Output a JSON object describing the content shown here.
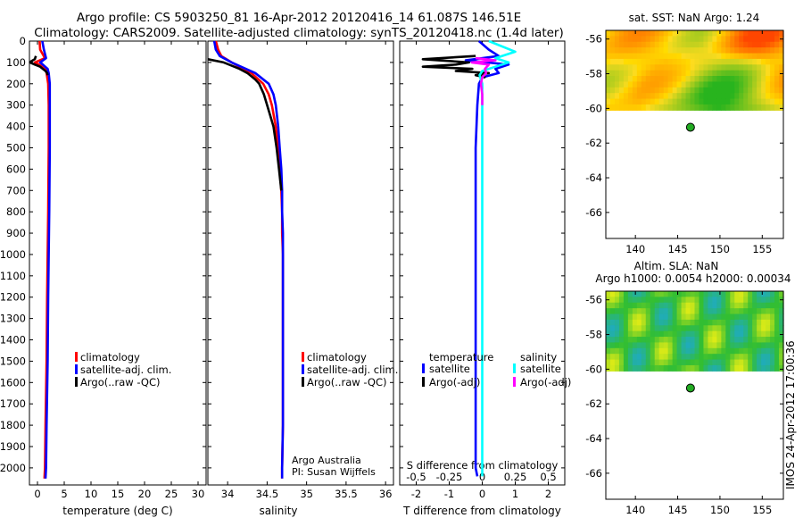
{
  "header": {
    "line1": "Argo profile: CS 5903250_81 16-Apr-2012 20120416_14 61.087S 146.51E",
    "line2": "Climatology: CARS2009. Satellite-adjusted climatology: synTS_20120418.nc (1.4d later)"
  },
  "colors": {
    "climatology": "#ff0000",
    "satellite": "#0000ff",
    "argo": "#000000",
    "salinity_satellite": "#00ffff",
    "salinity_argo": "#ff00ff",
    "argo_marker": "#22aa22"
  },
  "chart_data": [
    {
      "id": "temperature",
      "type": "line",
      "xlabel": "temperature (deg C)",
      "xlim": [
        -1.5,
        31.5
      ],
      "xticks": [
        "0",
        "5",
        "10",
        "15",
        "20",
        "25",
        "30"
      ],
      "ylim": [
        2080,
        0
      ],
      "yticks": [
        "0",
        "100",
        "200",
        "300",
        "400",
        "500",
        "600",
        "700",
        "800",
        "900",
        "1000",
        "1100",
        "1200",
        "1300",
        "1400",
        "1500",
        "1600",
        "1700",
        "1800",
        "1900",
        "2000"
      ],
      "legend": [
        "climatology",
        "satellite-adj. clim.",
        "Argo(..raw -QC)"
      ],
      "legend_placement": "lower-middle",
      "series": [
        {
          "name": "climatology",
          "y": [
            0,
            40,
            80,
            100,
            110,
            130,
            150,
            200,
            300,
            500,
            800,
            1000,
            1200,
            1500,
            1800,
            2000,
            2050
          ],
          "x": [
            0.4,
            0.5,
            1.4,
            -0.5,
            0.3,
            1.5,
            1.7,
            2.0,
            2.1,
            2.1,
            2.0,
            1.9,
            1.8,
            1.7,
            1.5,
            1.4,
            1.3
          ]
        },
        {
          "name": "satellite-adj. clim.",
          "y": [
            0,
            40,
            80,
            100,
            110,
            130,
            150,
            200,
            300,
            500,
            800,
            1000,
            1200,
            1500,
            1800,
            2000,
            2050
          ],
          "x": [
            0.9,
            1.2,
            1.6,
            0.5,
            1.0,
            1.9,
            2.1,
            2.3,
            2.3,
            2.3,
            2.2,
            2.1,
            2.0,
            1.9,
            1.7,
            1.6,
            1.5
          ]
        },
        {
          "name": "Argo(..raw -QC)",
          "y": [
            70,
            85,
            95,
            100,
            110,
            120,
            130,
            140,
            150,
            160
          ],
          "x": [
            -0.3,
            -0.5,
            -1.2,
            -1.4,
            -0.5,
            0.5,
            1.0,
            1.5,
            1.8,
            1.9
          ]
        }
      ]
    },
    {
      "id": "salinity",
      "type": "line",
      "xlabel": "salinity",
      "xlim": [
        33.75,
        36.1
      ],
      "xticks": [
        "34",
        "34.5",
        "35",
        "35.5",
        "36"
      ],
      "ylim": [
        2080,
        0
      ],
      "legend": [
        "climatology",
        "satellite-adj. clim.",
        "Argo(..raw -QC)"
      ],
      "legend_placement": "lower-middle",
      "annotation": [
        "Argo Australia",
        "PI: Susan Wijffels"
      ],
      "series": [
        {
          "name": "climatology",
          "y": [
            0,
            40,
            70,
            100,
            150,
            200,
            250,
            300,
            400,
            500,
            600,
            700,
            800,
            900,
            1000,
            1200,
            1500,
            1800,
            2000,
            2050
          ],
          "x": [
            33.85,
            33.88,
            33.92,
            34.05,
            34.3,
            34.45,
            34.52,
            34.56,
            34.61,
            34.64,
            34.66,
            34.68,
            34.69,
            34.69,
            34.7,
            34.7,
            34.7,
            34.7,
            34.69,
            34.69
          ]
        },
        {
          "name": "satellite-adj. clim.",
          "y": [
            0,
            40,
            70,
            100,
            150,
            200,
            250,
            300,
            400,
            500,
            600,
            700,
            800,
            900,
            1000,
            1200,
            1500,
            1800,
            2000,
            2050
          ],
          "x": [
            33.83,
            33.85,
            33.9,
            34.05,
            34.35,
            34.52,
            34.58,
            34.61,
            34.64,
            34.66,
            34.68,
            34.69,
            34.69,
            34.7,
            34.7,
            34.7,
            34.7,
            34.7,
            34.69,
            34.69
          ]
        },
        {
          "name": "Argo(..raw -QC)",
          "y": [
            85,
            100,
            130,
            150,
            180,
            200,
            250,
            300,
            400,
            500,
            600,
            700
          ],
          "x": [
            33.75,
            33.95,
            34.15,
            34.25,
            34.35,
            34.4,
            34.46,
            34.5,
            34.58,
            34.62,
            34.65,
            34.68
          ]
        }
      ]
    },
    {
      "id": "difference",
      "type": "line",
      "xlabel": "T difference from climatology",
      "xlabel2": "S difference from climatology",
      "xlim": [
        -2.5,
        2.5
      ],
      "xticks": [
        "-2",
        "-1",
        "0",
        "1",
        "2"
      ],
      "xticks2": [
        "-0.5",
        "-0.25",
        "0",
        "0.25",
        "0.5"
      ],
      "xlim2": [
        -0.625,
        0.625
      ],
      "legend_temperature_title": "temperature",
      "legend_salinity_title": "salinity",
      "legend": [
        "satellite",
        "Argo(-adj)",
        "satellite",
        "Argo(-adj)"
      ],
      "legend_placement": "lower-middle",
      "series": [
        {
          "name": "satellite",
          "group": "temperature",
          "y": [
            0,
            40,
            70,
            90,
            110,
            130,
            150,
            170,
            200,
            300,
            500,
            1000,
            1500,
            2000,
            2040
          ],
          "x": [
            -0.1,
            0.2,
            0.5,
            -0.5,
            0.8,
            0.4,
            0.5,
            0.0,
            -0.1,
            -0.15,
            -0.2,
            -0.2,
            -0.2,
            -0.2,
            -0.15
          ]
        },
        {
          "name": "Argo(-adj)",
          "group": "temperature",
          "y": [
            70,
            85,
            100,
            110,
            120,
            130,
            140,
            150,
            160,
            170
          ],
          "x": [
            -0.2,
            -1.8,
            -0.4,
            -0.8,
            -1.8,
            -0.3,
            -0.8,
            0.2,
            -0.2,
            0.1
          ]
        },
        {
          "name": "satellite",
          "group": "salinity",
          "y": [
            0,
            50,
            80,
            100,
            120,
            140,
            160,
            200,
            300,
            500,
            1000,
            1500,
            2000,
            2040
          ],
          "x": [
            0.05,
            0.25,
            0.1,
            0.2,
            0.1,
            0.0,
            -0.02,
            0.0,
            0.0,
            0.0,
            0.0,
            0.0,
            0.0,
            0.0
          ]
        },
        {
          "name": "Argo(-adj)",
          "group": "salinity",
          "y": [
            80,
            90,
            100,
            110,
            130,
            150,
            170,
            200,
            250,
            300
          ],
          "x": [
            -0.05,
            0.1,
            -0.08,
            0.05,
            0.02,
            0.03,
            0.0,
            -0.01,
            0.0,
            0.0
          ]
        }
      ]
    },
    {
      "id": "sst_map",
      "type": "heatmap",
      "title": "sat. SST: NaN Argo: 1.24",
      "xticks": [
        "140",
        "145",
        "150",
        "155"
      ],
      "yticks": [
        "-56",
        "-58",
        "-60",
        "-62",
        "-64",
        "-66"
      ],
      "xlim": [
        136.5,
        157.5
      ],
      "ylim": [
        -67.5,
        -55.5
      ],
      "data_lat_range": [
        -60.1,
        -55.5
      ],
      "argo_position": {
        "lon": 146.51,
        "lat": -61.087
      }
    },
    {
      "id": "sla_map",
      "type": "heatmap",
      "title": "Altim. SLA: NaN",
      "subtitle": "Argo h1000: 0.0054 h2000: 0.00034",
      "xticks": [
        "140",
        "145",
        "150",
        "155"
      ],
      "yticks": [
        "-56",
        "-58",
        "-60",
        "-62",
        "-64",
        "-66"
      ],
      "xlim": [
        136.5,
        157.5
      ],
      "ylim": [
        -67.5,
        -55.5
      ],
      "data_lat_range": [
        -60.1,
        -55.5
      ],
      "argo_position": {
        "lon": 146.51,
        "lat": -61.087
      }
    }
  ],
  "footer": {
    "stamp": "IMOS 24-Apr-2012 17:00:36"
  }
}
